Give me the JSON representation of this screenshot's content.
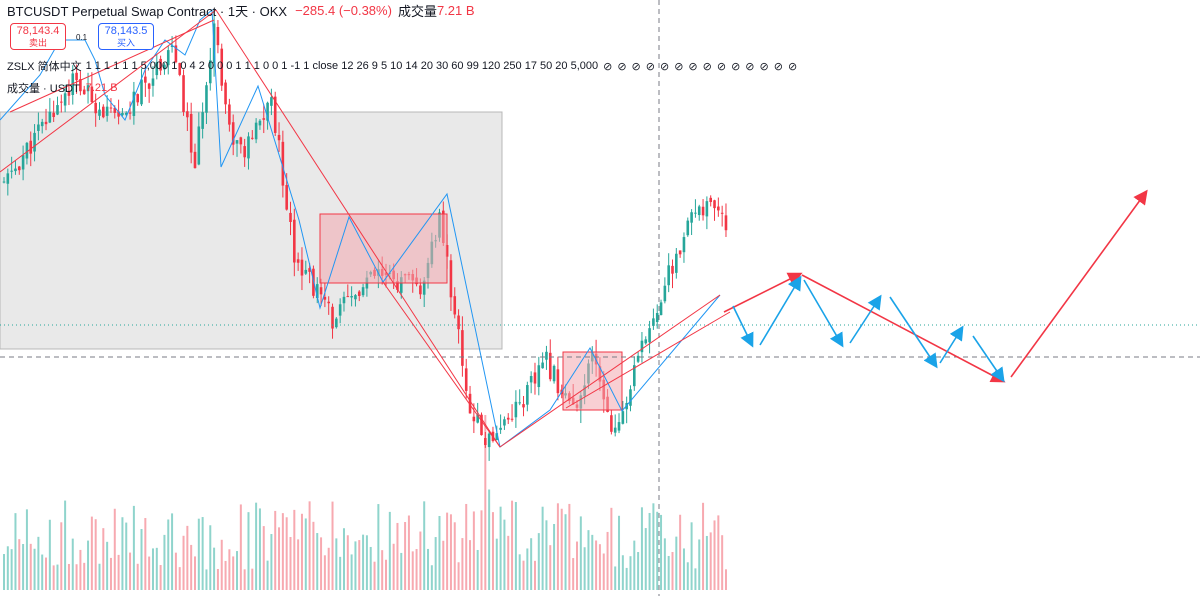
{
  "header": {
    "symbol_title": "BTCUSDT Perpetual Swap Contract · 1天 · OKX",
    "change": "−285.4 (−0.38%)",
    "volume_label": "成交量",
    "volume_value": "7.21 B"
  },
  "trade": {
    "sell_price": "78,143.4",
    "sell_label": "卖出",
    "spread": "0.1",
    "buy_price": "78,143.5",
    "buy_label": "买入"
  },
  "indicator": {
    "name": "ZSLX 简体中文",
    "params": "1 1 1 1 1 1 5,000 1 0 4 2 0 0 0 1 1 1 0 0 1 -1 1 close 12 26 9 5 10 14 20 30 60 99 120 250 17 50 20 5,000",
    "hidden_icon": "⊘",
    "hidden_count": 14
  },
  "volume_pane": {
    "label": "成交量 · USDT",
    "value": "7.21 B"
  },
  "colors": {
    "up": "#26a69a",
    "down": "#f23645",
    "wave_line": "#2196f3",
    "trend_line": "#f23645",
    "projection_blue": "#1aa3e8",
    "projection_red": "#f23645",
    "range_box_fill": "#ececec",
    "consolidation_box_fill": "#f3b5bb"
  },
  "chart_data": {
    "type": "candlestick",
    "title": "BTCUSDT Perpetual Swap Contract · 1天 · OKX",
    "interval": "1天",
    "last_price": 78143.4,
    "candle_count": 190,
    "swing_path_close": [
      [
        0,
        97500
      ],
      [
        18,
        106000
      ],
      [
        30,
        102500
      ],
      [
        44,
        109000
      ],
      [
        50,
        99000
      ],
      [
        55,
        111000
      ],
      [
        59,
        102000
      ],
      [
        63,
        100000
      ],
      [
        70,
        104500
      ],
      [
        76,
        92000
      ],
      [
        86,
        86500
      ],
      [
        97,
        90000
      ],
      [
        110,
        89000
      ],
      [
        114,
        95000
      ],
      [
        122,
        79000
      ],
      [
        126,
        76500
      ],
      [
        136,
        80000
      ],
      [
        142,
        83000
      ],
      [
        150,
        78500
      ],
      [
        154,
        83500
      ],
      [
        160,
        77000
      ],
      [
        170,
        87000
      ],
      [
        182,
        96000
      ],
      [
        190,
        94000
      ]
    ],
    "projection": {
      "blue_arrows": 10,
      "red_arrows": 3,
      "direction": "up, sideways, then strong rally"
    },
    "volume_spike_index": 126,
    "grid": false,
    "legend_position": "top-left"
  }
}
